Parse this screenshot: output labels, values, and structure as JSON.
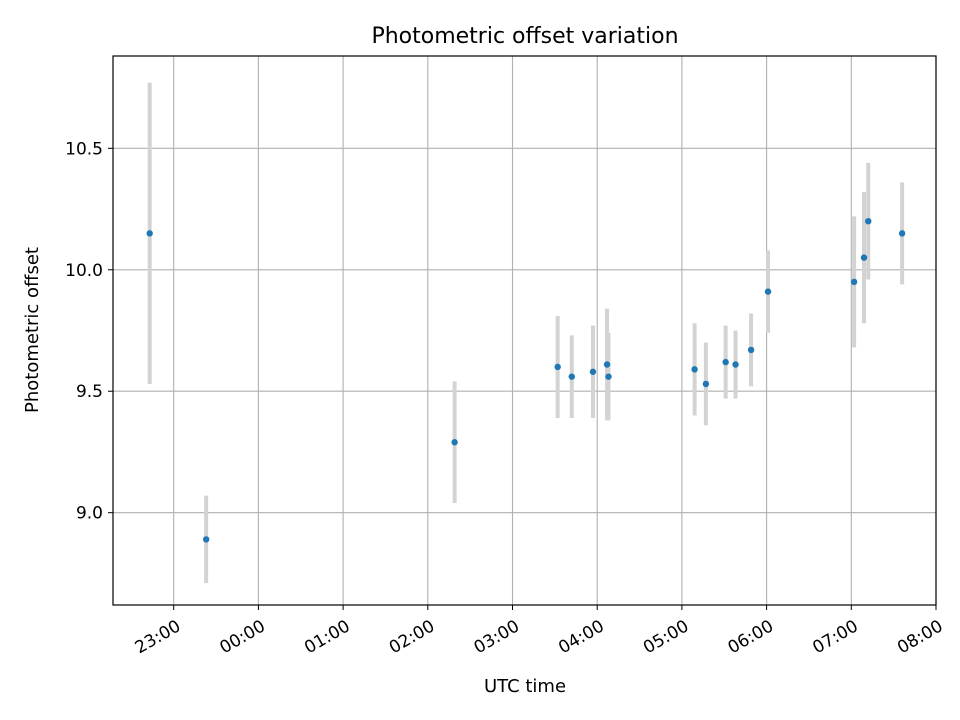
{
  "chart_data": {
    "type": "scatter",
    "title": "Photometric offset variation",
    "xlabel": "UTC time",
    "ylabel": "Photometric offset",
    "x_tick_labels": [
      "23:00",
      "00:00",
      "01:00",
      "02:00",
      "03:00",
      "04:00",
      "05:00",
      "06:00",
      "07:00",
      "08:00"
    ],
    "y_ticks": [
      9.0,
      9.5,
      10.0,
      10.5
    ],
    "y_tick_labels": [
      "9.0",
      "9.5",
      "10.0",
      "10.5"
    ],
    "xlim": [
      "22:17",
      "08:00"
    ],
    "ylim": [
      8.62,
      10.88
    ],
    "grid": true,
    "marker_color": "#1f77b4",
    "errorbar_color": "#d3d3d3",
    "series": [
      {
        "points": [
          {
            "x": "22:43",
            "y": 10.15,
            "err": 0.62
          },
          {
            "x": "23:23",
            "y": 8.89,
            "err": 0.18
          },
          {
            "x": "02:19",
            "y": 9.29,
            "err": 0.25
          },
          {
            "x": "03:32",
            "y": 9.6,
            "err": 0.21
          },
          {
            "x": "03:42",
            "y": 9.56,
            "err": 0.17
          },
          {
            "x": "03:57",
            "y": 9.58,
            "err": 0.19
          },
          {
            "x": "04:07",
            "y": 9.61,
            "err": 0.23
          },
          {
            "x": "04:08",
            "y": 9.56,
            "err": 0.18
          },
          {
            "x": "05:09",
            "y": 9.59,
            "err": 0.19
          },
          {
            "x": "05:17",
            "y": 9.53,
            "err": 0.17
          },
          {
            "x": "05:31",
            "y": 9.62,
            "err": 0.15
          },
          {
            "x": "05:38",
            "y": 9.61,
            "err": 0.14
          },
          {
            "x": "05:49",
            "y": 9.67,
            "err": 0.15
          },
          {
            "x": "06:01",
            "y": 9.91,
            "err": 0.17
          },
          {
            "x": "07:02",
            "y": 9.95,
            "err": 0.27
          },
          {
            "x": "07:09",
            "y": 10.05,
            "err": 0.27
          },
          {
            "x": "07:12",
            "y": 10.2,
            "err": 0.24
          },
          {
            "x": "07:36",
            "y": 10.15,
            "err": 0.21
          }
        ]
      }
    ]
  }
}
